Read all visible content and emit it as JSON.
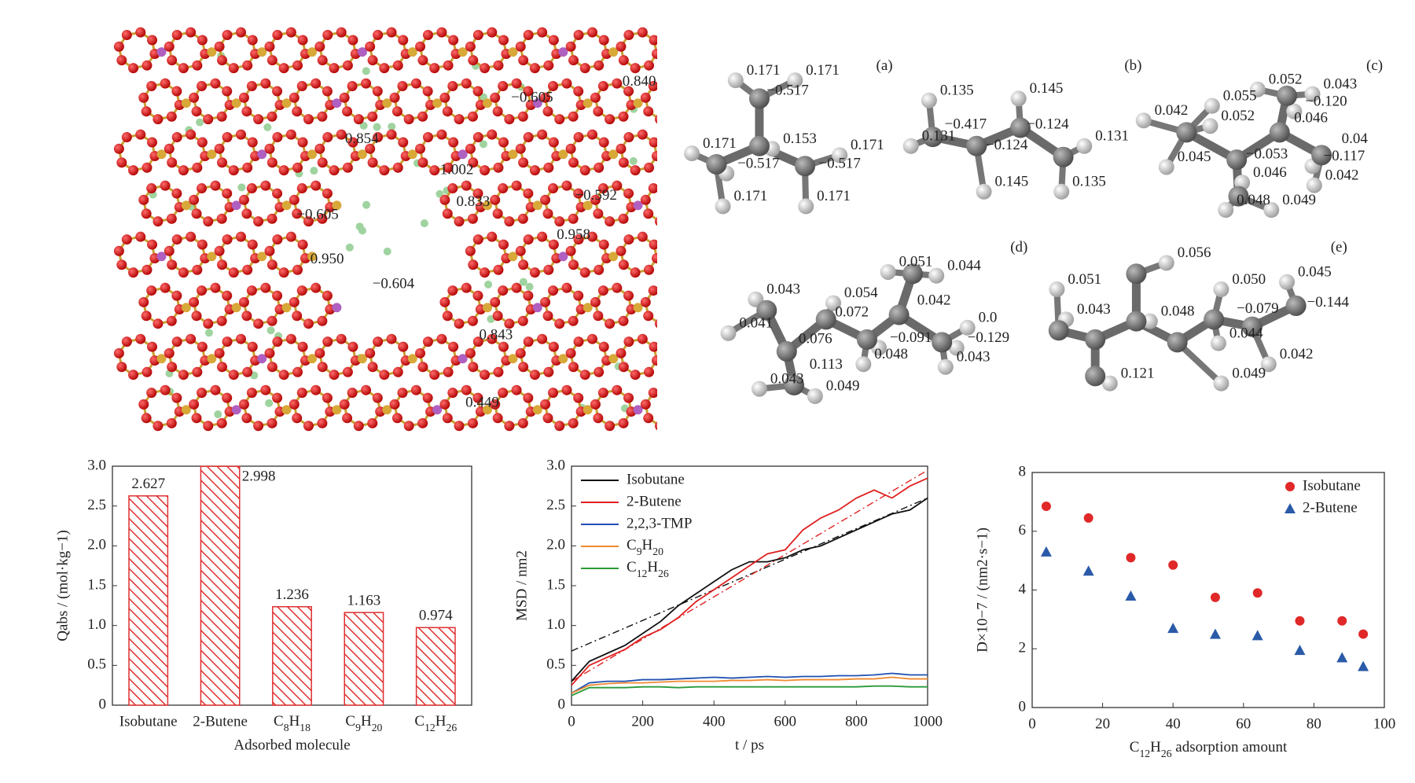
{
  "structure": {
    "labels": [
      "0.840",
      "−0.605",
      "0.854",
      "1.002",
      "0.833",
      "−0.592",
      "−0.605",
      "0.958",
      "0.950",
      "−0.604",
      "0.843",
      "0.449"
    ]
  },
  "molecules": [
    {
      "tag": "(a)",
      "labels": [
        "0.171",
        "0.171",
        "−0.517",
        "0.171",
        "0.153",
        "0.171",
        "−0.517",
        "−0.517",
        "0.171",
        "0.171"
      ]
    },
    {
      "tag": "(b)",
      "labels": [
        "0.135",
        "0.145",
        "−0.417",
        "−0.124",
        "0.131",
        "−0.124",
        "0.131",
        "0.145",
        "0.135"
      ]
    },
    {
      "tag": "(c)",
      "labels": [
        "0.052",
        "0.043",
        "0.055",
        "−0.120",
        "0.042",
        "0.052",
        "0.046",
        "0.04",
        "−0.053",
        "−0.117",
        "0.045",
        "0.046",
        "0.042",
        "0.048",
        "0.049"
      ]
    },
    {
      "tag": "(d)",
      "labels": [
        "0.051",
        "0.044",
        "0.043",
        "0.054",
        "0.042",
        "0.072",
        "0.041",
        "0.076",
        "−0.091",
        "0.0",
        "−0.129",
        "0.048",
        "0.043",
        "0.113",
        "0.043",
        "0.049"
      ]
    },
    {
      "tag": "(e)",
      "labels": [
        "0.056",
        "0.051",
        "0.050",
        "0.045",
        "0.043",
        "0.048",
        "−0.079",
        "−0.144",
        "0.044",
        "0.042",
        "0.121",
        "0.049"
      ]
    }
  ],
  "chart_data": [
    {
      "type": "bar",
      "categories": [
        "Isobutane",
        "2-Butene",
        "C8H18",
        "C9H20",
        "C12H26"
      ],
      "values": [
        2.627,
        2.998,
        1.236,
        1.163,
        0.974
      ],
      "color": "#e03030",
      "hatch": true,
      "ylim": [
        0,
        3
      ],
      "yticks": [
        0,
        0.5,
        {
          "value": 1,
          "label": "1.0"
        },
        1.5,
        {
          "value": 2,
          "label": "2.0"
        },
        2.5,
        {
          "value": 3,
          "label": "3.0"
        }
      ],
      "xlabel": "Adsorbed molecule",
      "ylabel": "Qabs / (mol·kg−1)"
    },
    {
      "type": "line",
      "x": [
        0,
        50,
        100,
        150,
        200,
        250,
        300,
        350,
        400,
        450,
        500,
        550,
        600,
        650,
        700,
        750,
        800,
        850,
        900,
        950,
        1000
      ],
      "series": [
        {
          "name": "Isobutane",
          "color": "#111111",
          "values": [
            0.3,
            0.55,
            0.65,
            0.75,
            0.9,
            1.05,
            1.25,
            1.4,
            1.55,
            1.7,
            1.8,
            1.8,
            1.85,
            1.95,
            2.0,
            2.1,
            2.2,
            2.3,
            2.4,
            2.45,
            2.6
          ]
        },
        {
          "name": "2-Butene",
          "color": "#e02020",
          "values": [
            0.25,
            0.5,
            0.6,
            0.7,
            0.85,
            0.95,
            1.1,
            1.3,
            1.45,
            1.6,
            1.75,
            1.9,
            1.95,
            2.2,
            2.35,
            2.45,
            2.6,
            2.7,
            2.6,
            2.75,
            2.85
          ]
        },
        {
          "name": "2,2,3-TMP",
          "color": "#2050b0",
          "values": [
            0.15,
            0.28,
            0.3,
            0.3,
            0.32,
            0.32,
            0.33,
            0.34,
            0.35,
            0.34,
            0.35,
            0.36,
            0.35,
            0.36,
            0.36,
            0.37,
            0.37,
            0.38,
            0.4,
            0.38,
            0.38
          ]
        },
        {
          "name": "C9H20",
          "color": "#f08a30",
          "values": [
            0.15,
            0.25,
            0.27,
            0.28,
            0.28,
            0.29,
            0.3,
            0.3,
            0.3,
            0.31,
            0.31,
            0.32,
            0.31,
            0.32,
            0.32,
            0.32,
            0.33,
            0.33,
            0.35,
            0.33,
            0.33
          ]
        },
        {
          "name": "C12H26",
          "color": "#2a9a3a",
          "values": [
            0.12,
            0.22,
            0.22,
            0.22,
            0.23,
            0.23,
            0.22,
            0.23,
            0.23,
            0.23,
            0.23,
            0.23,
            0.23,
            0.23,
            0.23,
            0.23,
            0.23,
            0.24,
            0.24,
            0.23,
            0.23
          ]
        }
      ],
      "fits": [
        {
          "color": "#111111",
          "x": [
            0,
            1000
          ],
          "values": [
            0.68,
            2.6
          ]
        },
        {
          "color": "#e02020",
          "x": [
            0,
            1000
          ],
          "values": [
            0.3,
            2.95
          ]
        }
      ],
      "xlim": [
        0,
        1000
      ],
      "xticks": [
        0,
        200,
        400,
        600,
        800,
        1000
      ],
      "ylim": [
        0,
        3
      ],
      "yticks": [
        0,
        0.5,
        {
          "value": 1,
          "label": "1.0"
        },
        1.5,
        {
          "value": 2,
          "label": "2.0"
        },
        2.5,
        {
          "value": 3,
          "label": "3.0"
        }
      ],
      "xlabel": "t / ps",
      "ylabel": "MSD / nm2",
      "legend": "upper left"
    },
    {
      "type": "scatter",
      "x": [
        4,
        16,
        28,
        40,
        52,
        64,
        76,
        88,
        94
      ],
      "series": [
        {
          "name": "Isobutane",
          "color": "#e02828",
          "marker": "circle",
          "values": [
            6.85,
            6.45,
            5.1,
            4.85,
            3.75,
            3.9,
            2.95,
            2.95,
            2.5
          ]
        },
        {
          "name": "2-Butene",
          "color": "#2a5aa8",
          "marker": "triangle",
          "values": [
            5.3,
            4.65,
            3.8,
            2.7,
            2.5,
            2.45,
            1.95,
            1.7,
            1.4
          ]
        }
      ],
      "xlim": [
        0,
        100
      ],
      "xticks": [
        0,
        20,
        40,
        60,
        80,
        100
      ],
      "ylim": [
        0,
        8
      ],
      "yticks": [
        0,
        2,
        4,
        6,
        8
      ],
      "xlabel": "C12H26 adsorption amount",
      "ylabel": "D×10−7 / (nm2·s−1)",
      "legend": "upper right"
    }
  ]
}
